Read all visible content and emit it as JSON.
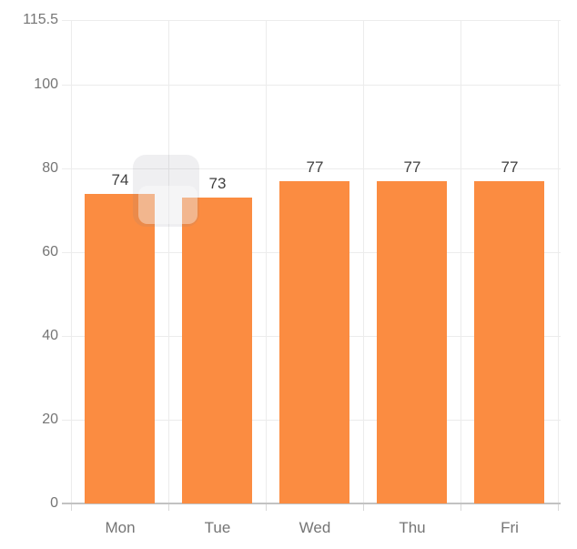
{
  "chart_data": {
    "type": "bar",
    "categories": [
      "Mon",
      "Tue",
      "Wed",
      "Thu",
      "Fri"
    ],
    "values": [
      74,
      73,
      77,
      77,
      77
    ],
    "title": "",
    "xlabel": "",
    "ylabel": "",
    "ylim": [
      0,
      115.5
    ],
    "y_ticks": [
      115.5,
      100,
      80,
      60,
      40,
      20,
      0
    ],
    "grid": true,
    "legend_position": "none",
    "colors": {
      "bar": "#FB8C41",
      "value_label": "#3F3F3F",
      "axis_label": "#757575",
      "gridline": "#ECECEC",
      "zero_line": "#C2C2C2",
      "below_axis_tick": "#D8D8D8",
      "cursor_highlight": "rgba(125,125,140,0.12)",
      "cursor_highlight_inner": "rgba(255,255,255,0.38)"
    }
  },
  "overlay": {
    "cursor_highlight_visible": true
  }
}
